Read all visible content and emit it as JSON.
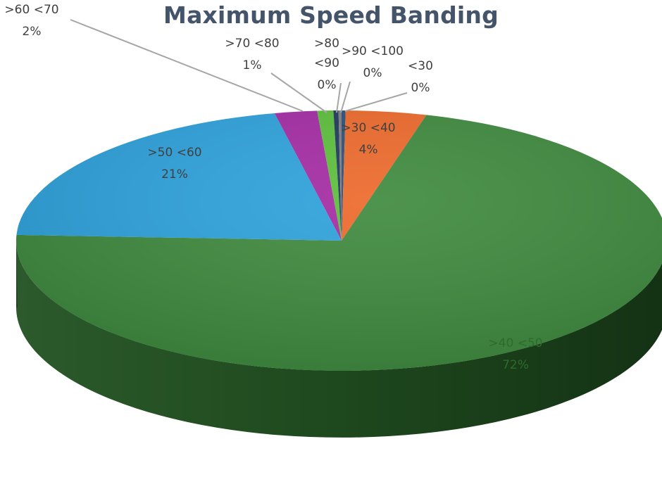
{
  "chart_data": {
    "type": "pie",
    "title": "Maximum Speed Banding",
    "three_d": true,
    "slices": [
      {
        "category": "<30",
        "percent": 0,
        "value": 0.2,
        "label": "0%",
        "color": "#2f4f7a"
      },
      {
        "category": ">30 <40",
        "percent": 4,
        "value": 4.0,
        "label": "4%",
        "color": "#ed6a2c"
      },
      {
        "category": ">40 <50",
        "percent": 72,
        "value": 71.5,
        "label": "72%",
        "color": "#3f8a3f"
      },
      {
        "category": ">50 <60",
        "percent": 21,
        "value": 21.0,
        "label": "21%",
        "color": "#2ea2dc"
      },
      {
        "category": ">60 <70",
        "percent": 2,
        "value": 2.1,
        "label": "2%",
        "color": "#a42ca4"
      },
      {
        "category": ">70 <80",
        "percent": 1,
        "value": 0.8,
        "label": "1%",
        "color": "#5cbf3c"
      },
      {
        "category": ">80 <90",
        "percent": 0,
        "value": 0.25,
        "label": "0%",
        "color": "#1f3a5a"
      },
      {
        "category": ">90 <100",
        "percent": 0,
        "value": 0.15,
        "label": "0%",
        "color": "#7f7f7f"
      }
    ]
  }
}
